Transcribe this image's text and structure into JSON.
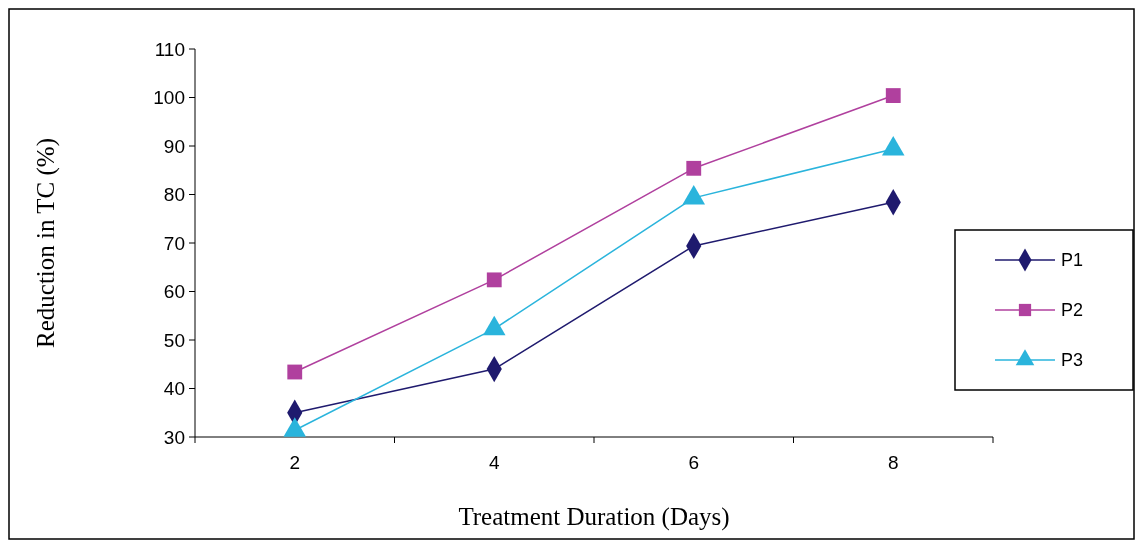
{
  "chart_data": {
    "type": "line",
    "xlabel": "Treatment Duration (Days)",
    "ylabel": "Reduction in TC (%)",
    "categories": [
      "2",
      "4",
      "6",
      "8"
    ],
    "ylim": [
      30,
      110
    ],
    "yticks": [
      30,
      40,
      50,
      60,
      70,
      80,
      90,
      100,
      110
    ],
    "grid": false,
    "legend": "right",
    "line_style": "solid",
    "series": [
      {
        "name": "P1",
        "color": "#1f1a6e",
        "marker": "diamond",
        "values": [
          35,
          44,
          69.4,
          78.4
        ]
      },
      {
        "name": "P2",
        "color": "#b0409e",
        "marker": "square",
        "values": [
          43.4,
          62.4,
          85.4,
          100.4
        ]
      },
      {
        "name": "P3",
        "color": "#2ab4dc",
        "marker": "triangle",
        "values": [
          31.4,
          52.3,
          79.3,
          89.4
        ]
      }
    ]
  }
}
